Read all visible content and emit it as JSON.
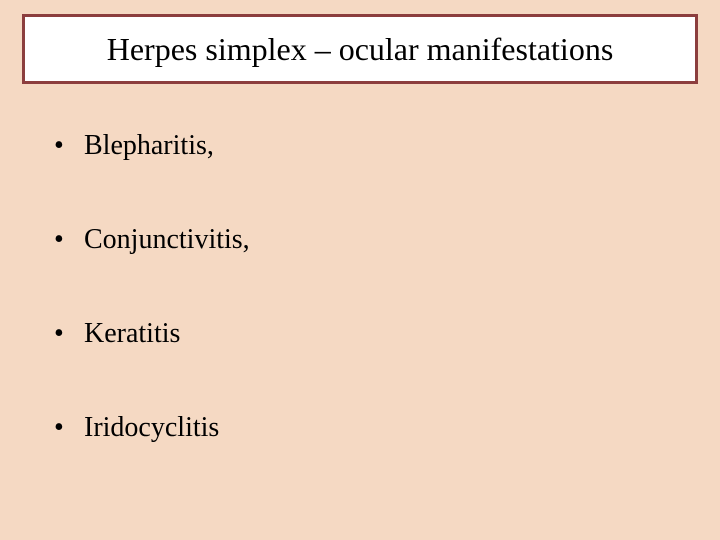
{
  "slide": {
    "background_color": "#f5d9c3",
    "title": {
      "text": "Herpes simplex – ocular manifestations",
      "fontsize": 32,
      "color": "#000000",
      "box_background": "#ffffff",
      "box_border_color": "#8c3e3e",
      "box_border_width": 3
    },
    "bullets": {
      "marker": "•",
      "fontsize": 28,
      "color": "#000000",
      "items": [
        {
          "text": "Blepharitis,"
        },
        {
          "text": "Conjunctivitis,"
        },
        {
          "text": "Keratitis"
        },
        {
          "text": "Iridocyclitis"
        }
      ]
    }
  }
}
